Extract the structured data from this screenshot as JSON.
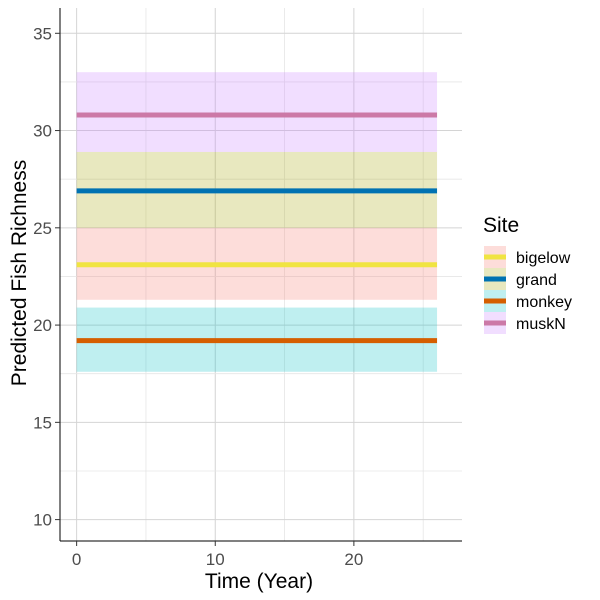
{
  "chart_data": {
    "type": "line",
    "xlabel": "Time (Year)",
    "ylabel": "Predicted Fish Richness",
    "xlim": [
      -1.2,
      27.8
    ],
    "ylim": [
      8.9,
      36.3
    ],
    "x_ticks": [
      0,
      10,
      20
    ],
    "y_ticks": [
      10,
      15,
      20,
      25,
      30,
      35
    ],
    "grid": true,
    "legend": {
      "title": "Site",
      "position": "right"
    },
    "series": [
      {
        "name": "bigelow",
        "x": [
          0,
          26
        ],
        "y": [
          23.1,
          23.1
        ],
        "lower": [
          21.3,
          21.3
        ],
        "upper": [
          25.0,
          25.0
        ],
        "color": "#F0E442",
        "band_color": "#F8766D"
      },
      {
        "name": "grand",
        "x": [
          0,
          26
        ],
        "y": [
          26.9,
          26.9
        ],
        "lower": [
          25.0,
          25.0
        ],
        "upper": [
          28.9,
          28.9
        ],
        "color": "#0072B2",
        "band_color": "#A3A500"
      },
      {
        "name": "monkey",
        "x": [
          0,
          26
        ],
        "y": [
          19.2,
          19.2
        ],
        "lower": [
          17.6,
          17.6
        ],
        "upper": [
          20.9,
          20.9
        ],
        "color": "#D55E00",
        "band_color": "#00BFC4"
      },
      {
        "name": "muskN",
        "x": [
          0,
          26
        ],
        "y": [
          30.8,
          30.8
        ],
        "lower": [
          28.9,
          28.9
        ],
        "upper": [
          33.0,
          33.0
        ],
        "color": "#CC79A7",
        "band_color": "#C77CFF"
      }
    ]
  }
}
